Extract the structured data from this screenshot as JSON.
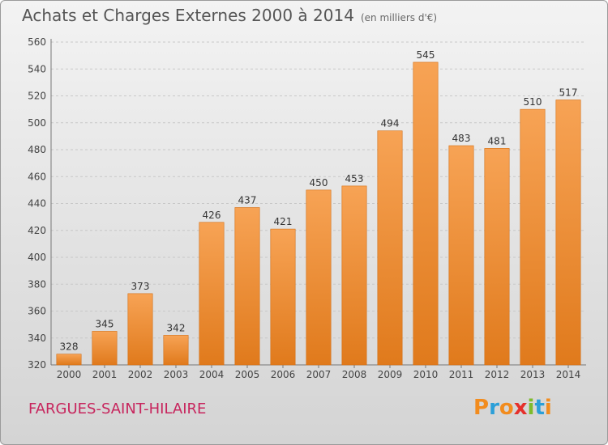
{
  "header": {
    "title": "Achats et Charges Externes 2000 à 2014",
    "subtitle": "(en milliers d'€)"
  },
  "place_name": "FARGUES-SAINT-HILAIRE",
  "logo": {
    "letters": [
      "P",
      "r",
      "o",
      "x",
      "i",
      "t",
      "i"
    ],
    "colors": [
      "#f28c1e",
      "#2b9fd8",
      "#f28c1e",
      "#e5302b",
      "#7dbb2c",
      "#2b9fd8",
      "#f28c1e"
    ]
  },
  "chart_data": {
    "type": "bar",
    "categories": [
      "2000",
      "2001",
      "2002",
      "2003",
      "2004",
      "2005",
      "2006",
      "2007",
      "2008",
      "2009",
      "2010",
      "2011",
      "2012",
      "2013",
      "2014"
    ],
    "values": [
      328,
      345,
      373,
      342,
      426,
      437,
      421,
      450,
      453,
      494,
      545,
      483,
      481,
      510,
      517
    ],
    "ylim": [
      320,
      560
    ],
    "yticks": [
      320,
      340,
      360,
      380,
      400,
      420,
      440,
      460,
      480,
      500,
      520,
      540,
      560
    ],
    "grid": true,
    "bar_color_top": "#f7a355",
    "bar_color_bottom": "#e07a1c",
    "title": "Achats et Charges Externes 2000 à 2014"
  }
}
